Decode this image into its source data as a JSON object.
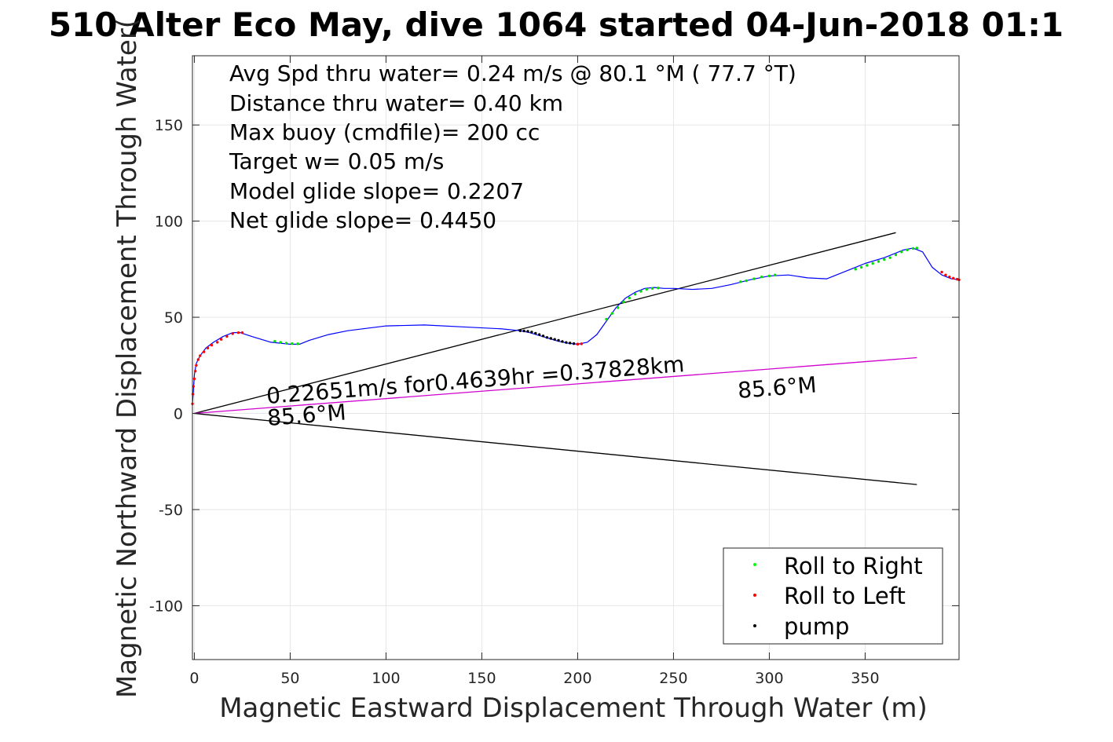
{
  "chart_data": {
    "type": "line",
    "title": "510 Alter Eco May, dive 1064 started 04-Jun-2018 01:1",
    "xlabel": "Magnetic Eastward Displacement Through Water (m)",
    "ylabel": "Magnetic Northward Displacement Through Water(",
    "xlim": [
      -1,
      399
    ],
    "ylim": [
      -128,
      186
    ],
    "x_ticks": [
      0,
      50,
      100,
      150,
      200,
      250,
      300,
      350
    ],
    "y_ticks": [
      -100,
      -50,
      0,
      50,
      100,
      150
    ],
    "grid": true,
    "info_lines": [
      "Avg Spd thru water=  0.24 m/s @  80.1 °M ( 77.7 °T)",
      "Distance thru water=  0.40 km",
      "Max buoy (cmdfile)= 200 cc",
      "Target w= 0.05 m/s",
      "Model glide slope= 0.2207",
      "Net glide slope= 0.4450"
    ],
    "annotations": {
      "speed_text": "0.22651m/s for0.4639hr =0.37828km",
      "heading_left": "85.6°M",
      "heading_right": "85.6°M"
    },
    "track": {
      "x": [
        -1,
        -0.5,
        0,
        1,
        3,
        6,
        10,
        15,
        20,
        24,
        30,
        40,
        50,
        55,
        60,
        70,
        80,
        100,
        120,
        140,
        160,
        170,
        175,
        180,
        185,
        190,
        195,
        200,
        205,
        210,
        215,
        220,
        225,
        230,
        235,
        240,
        245,
        250,
        260,
        270,
        280,
        290,
        300,
        310,
        320,
        330,
        340,
        345,
        350,
        360,
        370,
        375,
        380,
        385,
        390,
        395,
        399
      ],
      "y": [
        5,
        12,
        20,
        26,
        30,
        34,
        37,
        40,
        42,
        42,
        40,
        37,
        36,
        36,
        38,
        41,
        43,
        45.5,
        46,
        45,
        44,
        43,
        42,
        40.5,
        39,
        37.5,
        36.5,
        36,
        37,
        41,
        48,
        55,
        60,
        63,
        65,
        65.5,
        65,
        65,
        64.5,
        65,
        67,
        69.5,
        71.5,
        72,
        70.5,
        70,
        74,
        76,
        78,
        81,
        85,
        86,
        84,
        76,
        72,
        70,
        69.5
      ],
      "color": "#0000ff"
    },
    "lines": [
      {
        "name": "upper",
        "x": [
          0,
          366
        ],
        "y": [
          0,
          94
        ],
        "color": "#000000"
      },
      {
        "name": "lower",
        "x": [
          0,
          377
        ],
        "y": [
          0,
          -37
        ],
        "color": "#000000"
      },
      {
        "name": "mean",
        "x": [
          0,
          377
        ],
        "y": [
          0,
          29
        ],
        "color": "#d000d0"
      }
    ],
    "markers": {
      "pump": {
        "x": [
          170,
          172,
          174,
          176,
          178,
          180,
          182,
          184,
          186,
          188,
          190,
          192,
          194,
          196,
          198,
          200
        ],
        "y": [
          43,
          42.9,
          42.7,
          42.3,
          41.7,
          41,
          40.3,
          39.5,
          39,
          38.5,
          38,
          37.4,
          36.9,
          36.6,
          36.3,
          36
        ],
        "color": "#000000"
      },
      "roll_left": {
        "x": [
          -1,
          -0.8,
          -0.5,
          0,
          0.5,
          1,
          2,
          3,
          5,
          7,
          9,
          12,
          14,
          17,
          20,
          23,
          25,
          200,
          202,
          390,
          392,
          394,
          396,
          398,
          399
        ],
        "y": [
          5,
          10,
          14,
          18,
          22,
          25,
          28,
          30,
          32,
          34,
          35.5,
          37,
          38.5,
          40,
          41.5,
          42,
          42,
          36,
          36.2,
          73.5,
          72,
          71,
          70.3,
          69.8,
          69.5
        ],
        "color": "#ff0000"
      },
      "roll_right": {
        "x": [
          42,
          45,
          48,
          51,
          54,
          215,
          218,
          221,
          224,
          227,
          230,
          233,
          236,
          239,
          242,
          285,
          288,
          292,
          296,
          300,
          303,
          345,
          348,
          351,
          354,
          357,
          360,
          363,
          366,
          369,
          372,
          375,
          377
        ],
        "y": [
          37.5,
          37,
          36.5,
          36.3,
          36.2,
          49,
          52,
          55,
          58,
          60,
          62,
          63.5,
          64.5,
          65,
          65.2,
          68.5,
          69,
          70,
          71,
          71.5,
          72,
          75,
          76,
          77,
          78,
          79,
          80,
          81,
          82.5,
          84,
          85,
          85.8,
          86
        ],
        "color": "#00e000"
      }
    },
    "legend": {
      "position": "bottom-right",
      "entries": [
        {
          "label": "Roll to Right",
          "color": "#00ff00"
        },
        {
          "label": "Roll to Left",
          "color": "#ff0000"
        },
        {
          "label": "pump",
          "color": "#000000"
        }
      ]
    }
  }
}
